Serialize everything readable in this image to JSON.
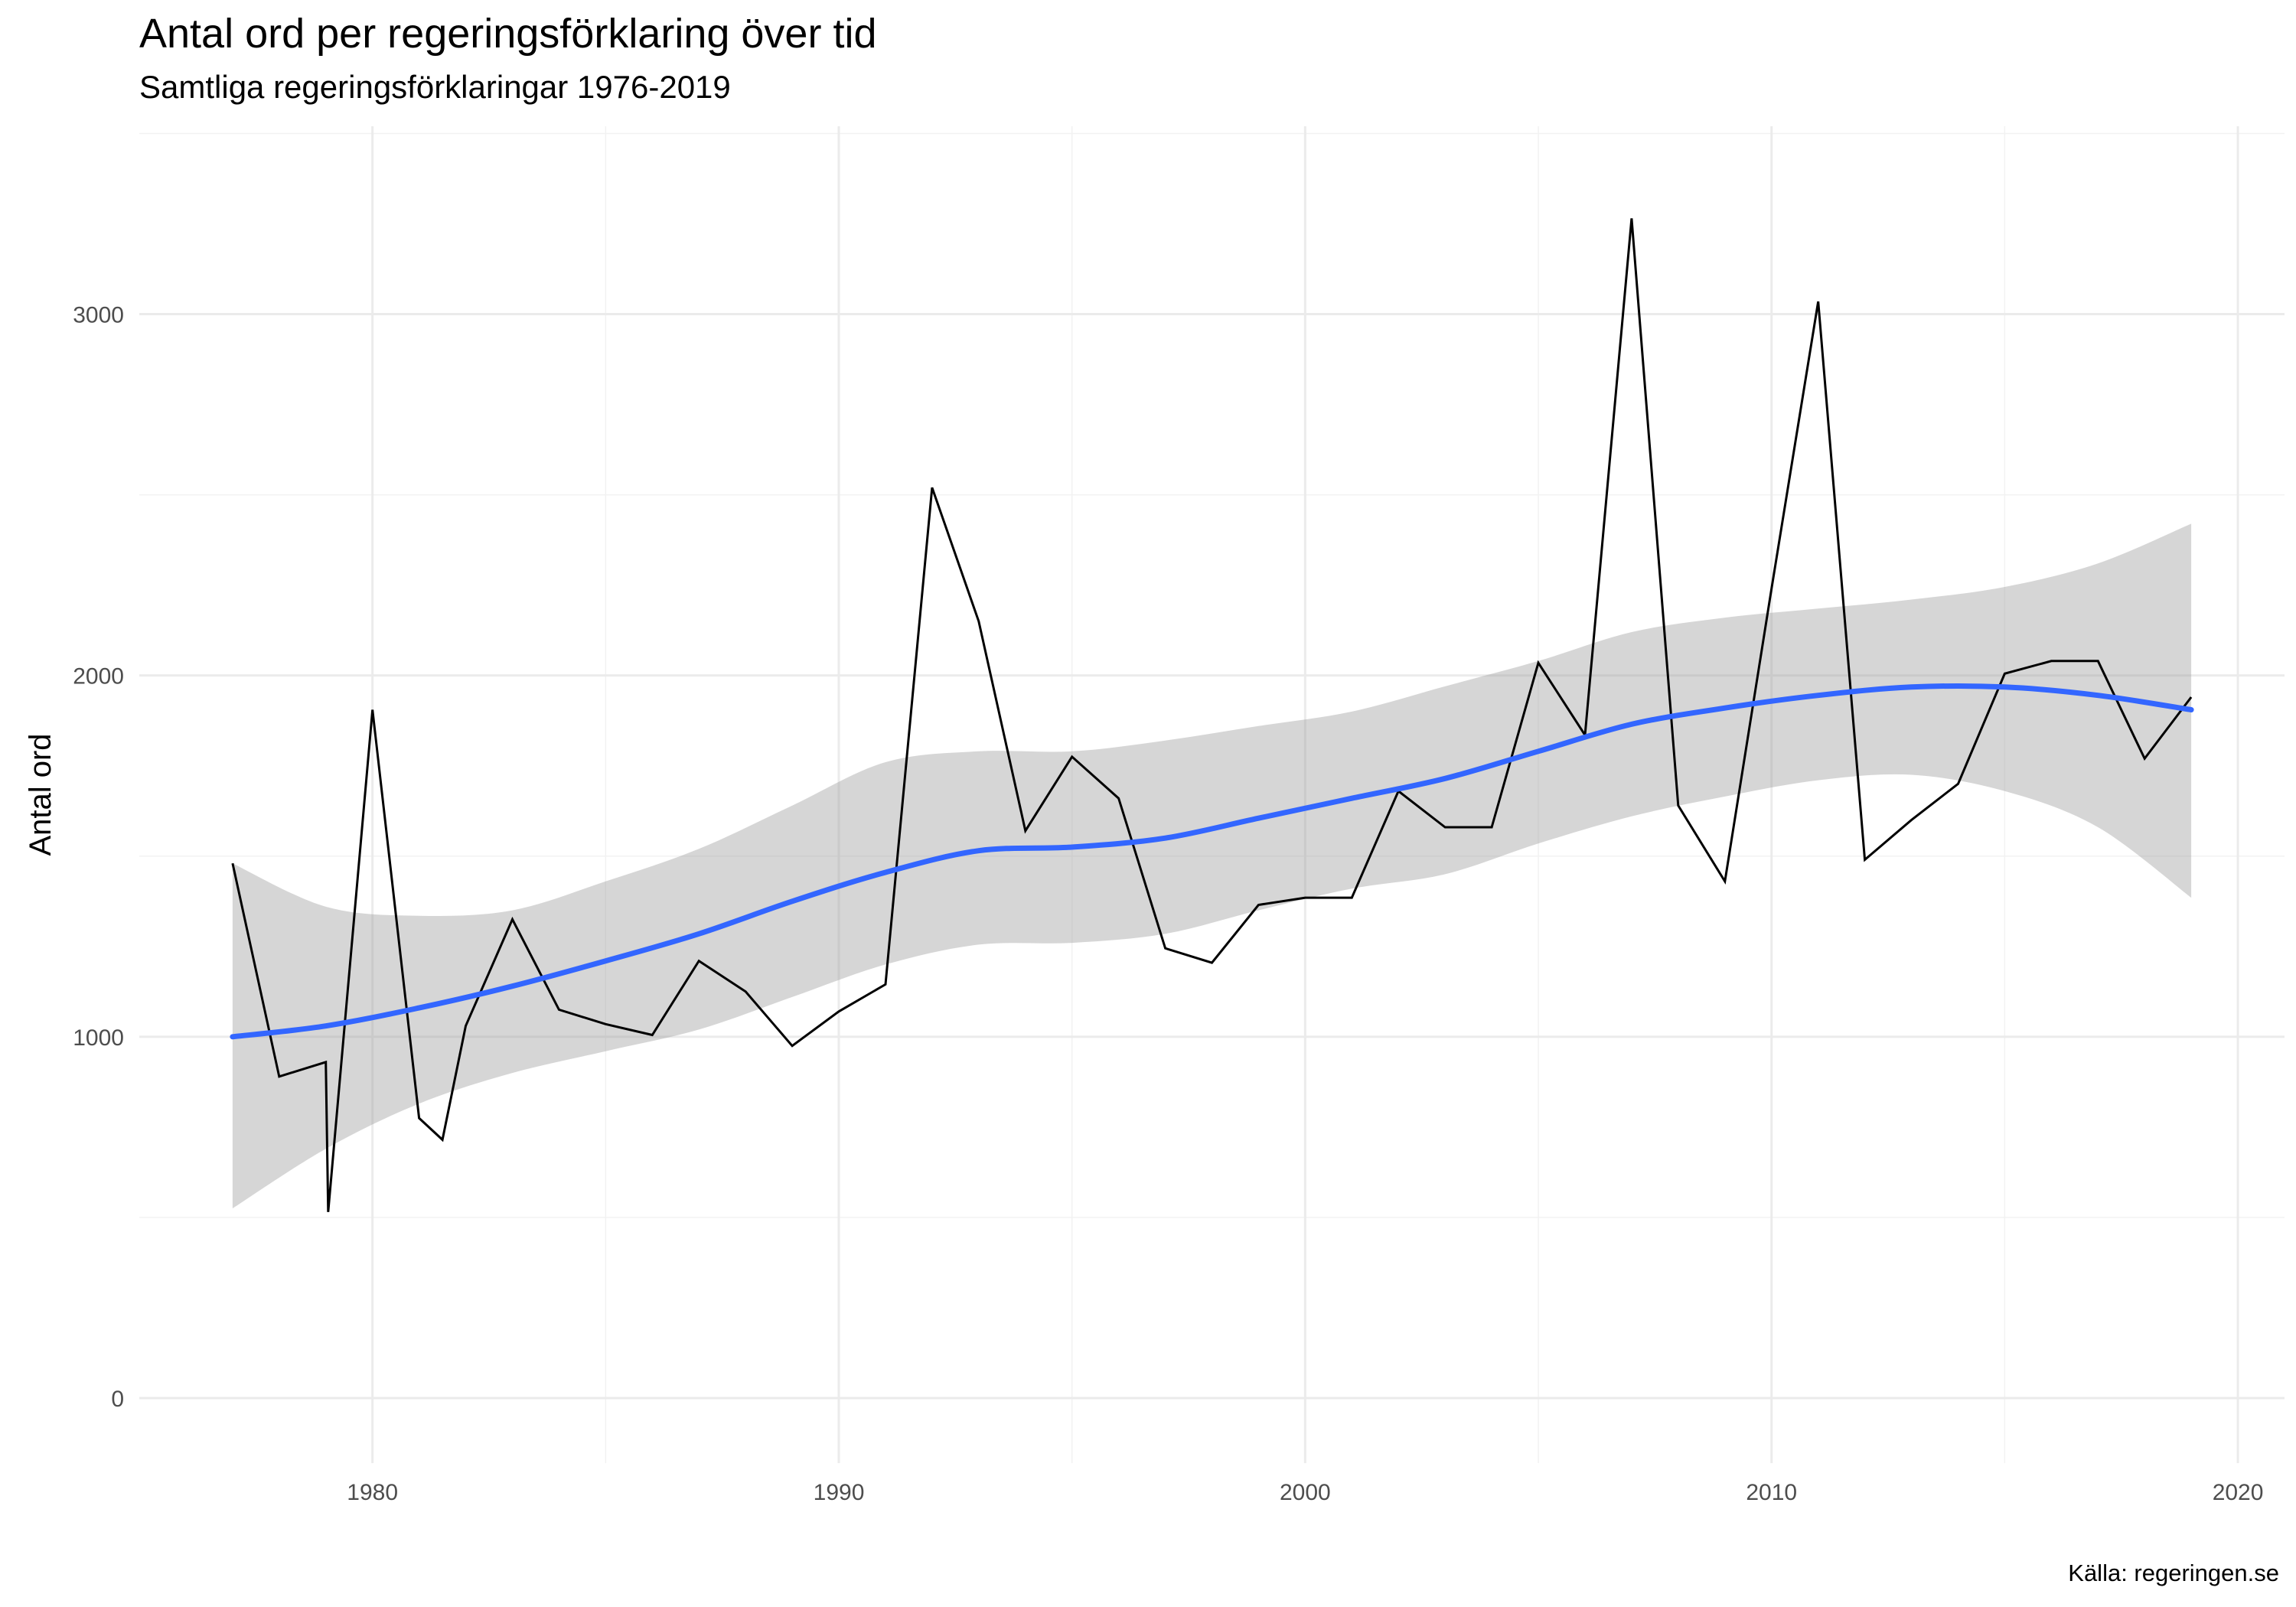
{
  "chart_data": {
    "type": "line",
    "title": "Antal ord per regeringsförklaring över tid",
    "subtitle": "Samtliga regeringsförklaringar 1976-2019",
    "xlabel": "",
    "ylabel": "Antal ord",
    "caption": "Källa: regeringen.se",
    "xlim": [
      1975,
      2021
    ],
    "ylim": [
      -180,
      3520
    ],
    "x_ticks": [
      1980,
      1990,
      2000,
      2010,
      2020
    ],
    "y_ticks": [
      0,
      1000,
      2000,
      3000
    ],
    "grid": true,
    "legend": "none",
    "series": [
      {
        "kind": "line",
        "color": "#000000",
        "x": [
          1977,
          1978,
          1979,
          1979.05,
          1980,
          1981,
          1981.5,
          1982,
          1983,
          1984,
          1985,
          1986,
          1987,
          1988,
          1989,
          1990,
          1991,
          1992,
          1993,
          1994,
          1995,
          1996,
          1997,
          1998,
          1999,
          2000,
          2001,
          2002,
          2003,
          2004,
          2005,
          2006,
          2007,
          2008,
          2009,
          2010,
          2011,
          2012,
          2013,
          2014,
          2015,
          2016,
          2017,
          2018,
          2019
        ],
        "y": [
          1480,
          890,
          930,
          515,
          1905,
          775,
          715,
          1030,
          1325,
          1075,
          1035,
          1005,
          1210,
          1125,
          975,
          1070,
          1145,
          2520,
          2150,
          1570,
          1775,
          1660,
          1245,
          1205,
          1365,
          1385,
          1385,
          1680,
          1580,
          1580,
          2035,
          1835,
          3265,
          1640,
          1430,
          2240,
          3035,
          1490,
          1600,
          1700,
          2005,
          2040,
          2040,
          1770,
          1940
        ]
      },
      {
        "kind": "smooth",
        "color": "#3366ff",
        "x": [
          1977,
          1979,
          1981,
          1983,
          1985,
          1987,
          1989,
          1991,
          1993,
          1995,
          1997,
          1999,
          2001,
          2003,
          2005,
          2007,
          2009,
          2011,
          2013,
          2015,
          2017,
          2019
        ],
        "y": [
          1000,
          1030,
          1080,
          1140,
          1210,
          1285,
          1375,
          1455,
          1515,
          1525,
          1550,
          1605,
          1660,
          1715,
          1790,
          1865,
          1910,
          1945,
          1968,
          1968,
          1945,
          1905
        ],
        "ci_upper": [
          1480,
          1360,
          1335,
          1350,
          1430,
          1520,
          1640,
          1760,
          1790,
          1790,
          1820,
          1860,
          1900,
          1970,
          2040,
          2120,
          2160,
          2185,
          2210,
          2245,
          2310,
          2420
        ],
        "ci_lower": [
          525,
          690,
          815,
          900,
          960,
          1020,
          1110,
          1200,
          1255,
          1260,
          1285,
          1350,
          1410,
          1450,
          1535,
          1610,
          1665,
          1710,
          1725,
          1680,
          1580,
          1385
        ]
      }
    ]
  }
}
